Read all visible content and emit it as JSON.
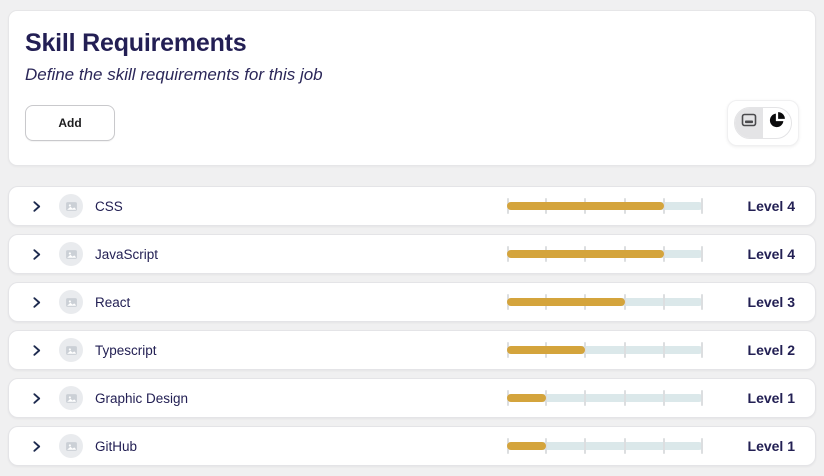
{
  "header": {
    "title": "Skill Requirements",
    "subtitle": "Define the skill requirements for this job",
    "add_label": "Add",
    "view_toggle": {
      "options": [
        "card-view",
        "pie-chart-view"
      ],
      "selected": "card-view"
    }
  },
  "slider": {
    "max_level": 5
  },
  "skills": [
    {
      "name": "CSS",
      "level": 4,
      "level_label": "Level 4"
    },
    {
      "name": "JavaScript",
      "level": 4,
      "level_label": "Level 4"
    },
    {
      "name": "React",
      "level": 3,
      "level_label": "Level 3"
    },
    {
      "name": "Typescript",
      "level": 2,
      "level_label": "Level 2"
    },
    {
      "name": "Graphic Design",
      "level": 1,
      "level_label": "Level 1"
    },
    {
      "name": "GitHub",
      "level": 1,
      "level_label": "Level 1"
    }
  ],
  "colors": {
    "accent_gold": "#d4a43c",
    "track": "#dbe8ea",
    "text_navy": "#232054",
    "page_background": "#f0f0f1"
  }
}
